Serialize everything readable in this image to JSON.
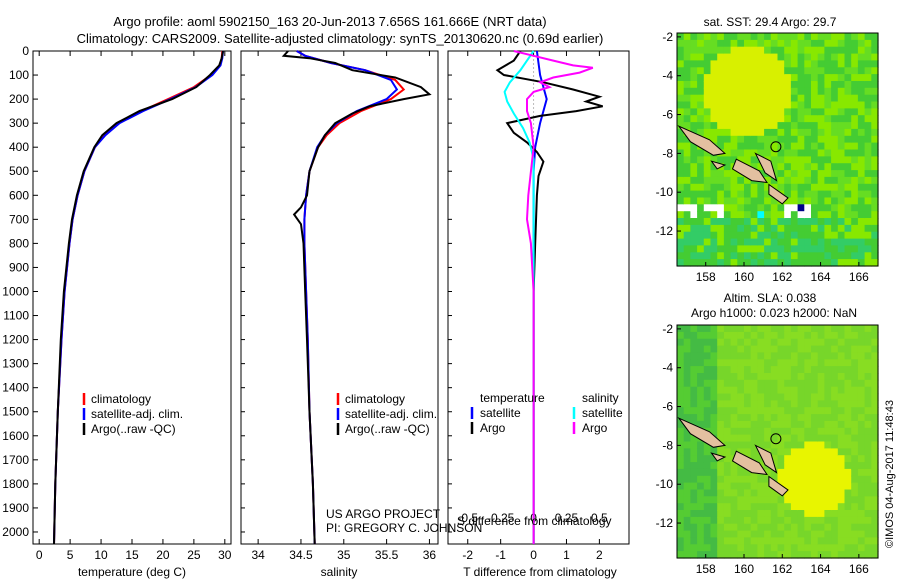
{
  "header": {
    "line1": "Argo profile: aoml 5902150_163 20-Jun-2013 7.656S 161.666E (NRT data)",
    "line2": "Climatology: CARS2009. Satellite-adjusted climatology: synTS_20130620.nc (0.69d earlier)"
  },
  "colors": {
    "climatology": "#ff0000",
    "satellite": "#0000ff",
    "argo": "#000000",
    "argo_salinity": "#ff00ff",
    "satellite_salinity": "#00ffff"
  },
  "chart_data": [
    {
      "type": "line",
      "id": "temperature",
      "xlabel": "temperature (deg C)",
      "ylabel": "",
      "xlim": [
        -1,
        31
      ],
      "ylim": [
        2050,
        0
      ],
      "xticks": [
        0,
        5,
        10,
        15,
        20,
        25,
        30
      ],
      "yticks": [
        0,
        100,
        200,
        300,
        400,
        500,
        600,
        700,
        800,
        900,
        1000,
        1100,
        1200,
        1300,
        1400,
        1500,
        1600,
        1700,
        1800,
        1900,
        2000
      ],
      "legend": [
        "climatology",
        "satellite-adj. clim.",
        "Argo(..raw -QC)"
      ],
      "series": [
        {
          "name": "climatology",
          "depth": [
            0,
            30,
            60,
            100,
            150,
            200,
            250,
            300,
            350,
            400,
            500,
            600,
            700,
            800,
            1000,
            1200,
            1500,
            1800,
            2050
          ],
          "values": [
            29.6,
            29.5,
            29.2,
            27.8,
            25.0,
            20.8,
            16.5,
            12.8,
            10.6,
            9.0,
            7.3,
            6.2,
            5.4,
            4.9,
            4.1,
            3.6,
            3.0,
            2.6,
            2.4
          ]
        },
        {
          "name": "satellite-adj. clim.",
          "depth": [
            0,
            30,
            60,
            100,
            150,
            200,
            250,
            300,
            350,
            400,
            500,
            600,
            700,
            800,
            1000,
            1200,
            1500,
            1800,
            2050
          ],
          "values": [
            29.7,
            29.6,
            29.3,
            28.0,
            25.3,
            21.2,
            16.8,
            13.0,
            10.7,
            9.0,
            7.3,
            6.2,
            5.4,
            4.9,
            4.1,
            3.6,
            3.0,
            2.6,
            2.4
          ]
        },
        {
          "name": "Argo(..raw -QC)",
          "depth": [
            0,
            30,
            60,
            100,
            150,
            200,
            250,
            300,
            350,
            400,
            500,
            600,
            700,
            800,
            1000,
            1200,
            1500,
            1800,
            2050
          ],
          "values": [
            29.7,
            29.5,
            29.1,
            27.6,
            25.4,
            21.5,
            16.2,
            12.5,
            10.2,
            8.9,
            7.2,
            6.1,
            5.3,
            4.8,
            4.0,
            3.5,
            3.0,
            2.6,
            2.4
          ]
        }
      ]
    },
    {
      "type": "line",
      "id": "salinity",
      "xlabel": "salinity",
      "ylabel": "",
      "xlim": [
        33.8,
        36.1
      ],
      "ylim": [
        2050,
        0
      ],
      "xticks": [
        34,
        34.5,
        35,
        35.5,
        36
      ],
      "legend": [
        "climatology",
        "satellite-adj. clim.",
        "Argo(..raw -QC)"
      ],
      "series": [
        {
          "name": "climatology",
          "depth": [
            0,
            20,
            50,
            80,
            120,
            160,
            200,
            250,
            300,
            350,
            400,
            500,
            600,
            700,
            800,
            1000,
            1200,
            1500,
            1800,
            2050
          ],
          "values": [
            34.45,
            34.55,
            34.85,
            35.25,
            35.6,
            35.7,
            35.55,
            35.2,
            34.95,
            34.8,
            34.7,
            34.6,
            34.56,
            34.54,
            34.54,
            34.56,
            34.58,
            34.6,
            34.64,
            34.66
          ]
        },
        {
          "name": "satellite-adj. clim.",
          "depth": [
            0,
            20,
            50,
            80,
            120,
            160,
            200,
            250,
            300,
            350,
            400,
            500,
            600,
            700,
            800,
            1000,
            1200,
            1500,
            1800,
            2050
          ],
          "values": [
            34.45,
            34.55,
            34.85,
            35.25,
            35.55,
            35.62,
            35.5,
            35.15,
            34.92,
            34.78,
            34.69,
            34.6,
            34.56,
            34.54,
            34.54,
            34.56,
            34.58,
            34.6,
            34.64,
            34.66
          ]
        },
        {
          "name": "Argo(..raw -QC)",
          "depth": [
            0,
            20,
            30,
            50,
            80,
            110,
            150,
            180,
            200,
            230,
            260,
            300,
            350,
            400,
            500,
            600,
            650,
            680,
            720,
            800,
            1000,
            1200,
            1500,
            1800,
            2050
          ],
          "values": [
            34.35,
            34.3,
            34.6,
            34.9,
            35.1,
            35.6,
            35.9,
            36.0,
            35.7,
            35.3,
            35.1,
            34.9,
            34.78,
            34.7,
            34.6,
            34.57,
            34.5,
            34.42,
            34.5,
            34.53,
            34.55,
            34.57,
            34.6,
            34.64,
            34.66
          ]
        }
      ]
    },
    {
      "type": "line",
      "id": "differences",
      "xlabel": "T difference from climatology",
      "xlabel_top": "S difference from climatology",
      "xlim": [
        -2.6,
        2.9
      ],
      "ylim": [
        2050,
        0
      ],
      "xticks": [
        -2,
        -1,
        0,
        1,
        2
      ],
      "xticks_salinity": [
        -0.5,
        -0.25,
        0,
        0.25,
        0.5
      ],
      "legend_titles": [
        "temperature",
        "salinity"
      ],
      "legend": [
        "satellite",
        "Argo",
        "satellite",
        "Argo"
      ],
      "series": [
        {
          "name": "temperature satellite",
          "depth": [
            0,
            50,
            100,
            150,
            200,
            250,
            300,
            400,
            500,
            700,
            1000,
            1500,
            2050
          ],
          "values": [
            0.1,
            0.15,
            0.2,
            0.3,
            0.4,
            0.3,
            0.2,
            0.05,
            0.0,
            0.0,
            0.0,
            0.0,
            0.0
          ]
        },
        {
          "name": "temperature Argo",
          "depth": [
            0,
            40,
            80,
            100,
            130,
            160,
            190,
            210,
            230,
            250,
            270,
            300,
            340,
            380,
            420,
            460,
            520,
            600,
            800,
            1000,
            1500,
            2050
          ],
          "values": [
            -0.4,
            -0.6,
            -1.1,
            -0.9,
            0.3,
            1.2,
            2.0,
            1.6,
            2.1,
            1.3,
            0.2,
            -0.8,
            -0.6,
            -0.2,
            0.1,
            0.3,
            0.15,
            0.1,
            0.05,
            0.0,
            0.0,
            0.0
          ]
        },
        {
          "name": "salinity satellite",
          "depth": [
            0,
            40,
            80,
            130,
            170,
            210,
            260,
            320,
            380,
            450,
            600,
            800,
            1200,
            1600,
            2050
          ],
          "values": [
            0.0,
            -0.05,
            -0.1,
            -0.18,
            -0.22,
            -0.2,
            -0.15,
            -0.08,
            -0.03,
            0.0,
            0.0,
            0.0,
            0.0,
            0.0,
            0.0
          ]
        },
        {
          "name": "salinity Argo",
          "depth": [
            0,
            20,
            40,
            60,
            70,
            90,
            110,
            130,
            150,
            170,
            200,
            250,
            300,
            400,
            600,
            700,
            800,
            1000,
            1500,
            2050
          ],
          "values": [
            -0.15,
            0.0,
            0.15,
            0.3,
            0.45,
            0.35,
            0.15,
            0.05,
            0.12,
            0.0,
            -0.05,
            -0.05,
            -0.02,
            0.0,
            -0.04,
            -0.05,
            -0.02,
            0.0,
            0.0,
            0.0
          ]
        }
      ]
    },
    {
      "type": "heatmap",
      "id": "sst_map",
      "title": "sat. SST: 29.4  Argo: 29.7",
      "xlim": [
        156.5,
        167
      ],
      "ylim": [
        -13.8,
        -1.8
      ],
      "xticks": [
        158,
        160,
        162,
        164,
        166
      ],
      "yticks": [
        -2,
        -4,
        -6,
        -8,
        -10,
        -12
      ],
      "marker": {
        "lon": 161.666,
        "lat": -7.656
      }
    },
    {
      "type": "heatmap",
      "id": "sla_map",
      "title_line1": "Altim. SLA: 0.038",
      "title_line2": "Argo h1000: 0.023 h2000: NaN",
      "xlim": [
        156.5,
        167
      ],
      "ylim": [
        -13.8,
        -1.8
      ],
      "xticks": [
        158,
        160,
        162,
        164,
        166
      ],
      "yticks": [
        -2,
        -4,
        -6,
        -8,
        -10,
        -12
      ],
      "marker": {
        "lon": 161.666,
        "lat": -7.656
      }
    }
  ],
  "annotations": {
    "project_line1": "US ARGO PROJECT",
    "project_line2": "PI: GREGORY C. JOHNSON",
    "imos_stamp": "©IMOS 04-Aug-2017 11:48:43"
  }
}
